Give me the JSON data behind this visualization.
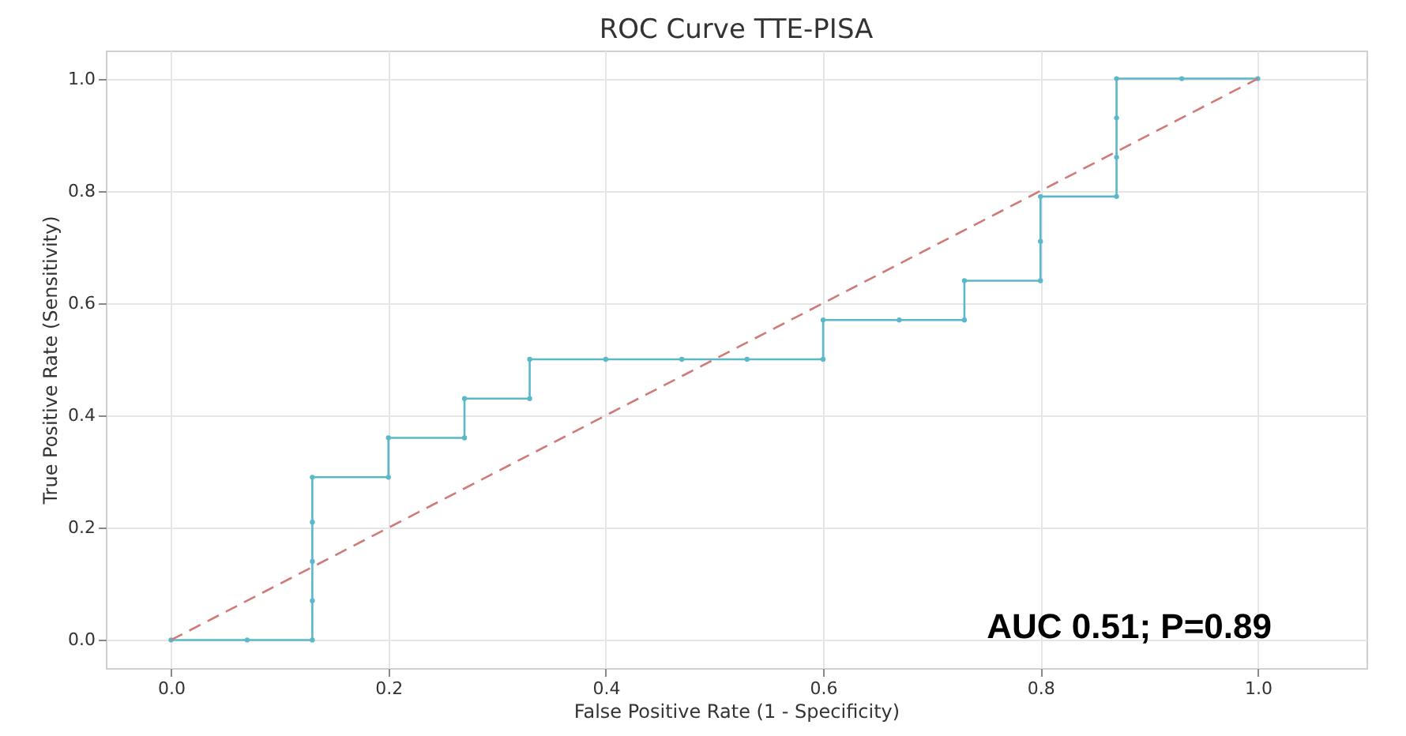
{
  "chart_data": {
    "type": "line",
    "title": "ROC Curve TTE-PISA",
    "xlabel": "False Positive Rate (1 - Specificity)",
    "ylabel": "True Positive Rate (Sensitivity)",
    "xlim": [
      -0.06,
      1.1
    ],
    "ylim": [
      -0.05,
      1.05
    ],
    "xticks": [
      {
        "value": 0,
        "label": "0.0"
      },
      0.2,
      0.4,
      0.6,
      0.8,
      {
        "value": 1,
        "label": "1.0"
      }
    ],
    "yticks": [
      {
        "value": 0,
        "label": "0.0"
      },
      0.2,
      0.4,
      0.6,
      0.8,
      {
        "value": 1,
        "label": "1.0"
      }
    ],
    "grid": true,
    "marker": "circle",
    "series": [
      {
        "color": "#5bb8c8",
        "x": [
          0,
          0.07,
          0.13,
          0.13,
          0.13,
          0.13,
          0.13,
          0.2,
          0.2,
          0.27,
          0.27,
          0.33,
          0.33,
          0.4,
          0.47,
          0.53,
          0.6,
          0.6,
          0.67,
          0.73,
          0.73,
          0.8,
          0.8,
          0.8,
          0.87,
          0.87,
          0.87,
          0.87,
          0.93,
          1.0
        ],
        "values": [
          0,
          0,
          0,
          0.07,
          0.14,
          0.21,
          0.29,
          0.29,
          0.36,
          0.36,
          0.43,
          0.43,
          0.5,
          0.5,
          0.5,
          0.5,
          0.5,
          0.57,
          0.57,
          0.57,
          0.64,
          0.64,
          0.71,
          0.79,
          0.79,
          0.86,
          0.93,
          1.0,
          1.0,
          1.0
        ]
      },
      {
        "color": "#d07a78",
        "line_style": "dashed",
        "marker": "none",
        "x": [
          0,
          1
        ],
        "values": [
          0,
          1
        ]
      }
    ],
    "annotations": [
      "AUC 0.51; P=0.89"
    ]
  }
}
